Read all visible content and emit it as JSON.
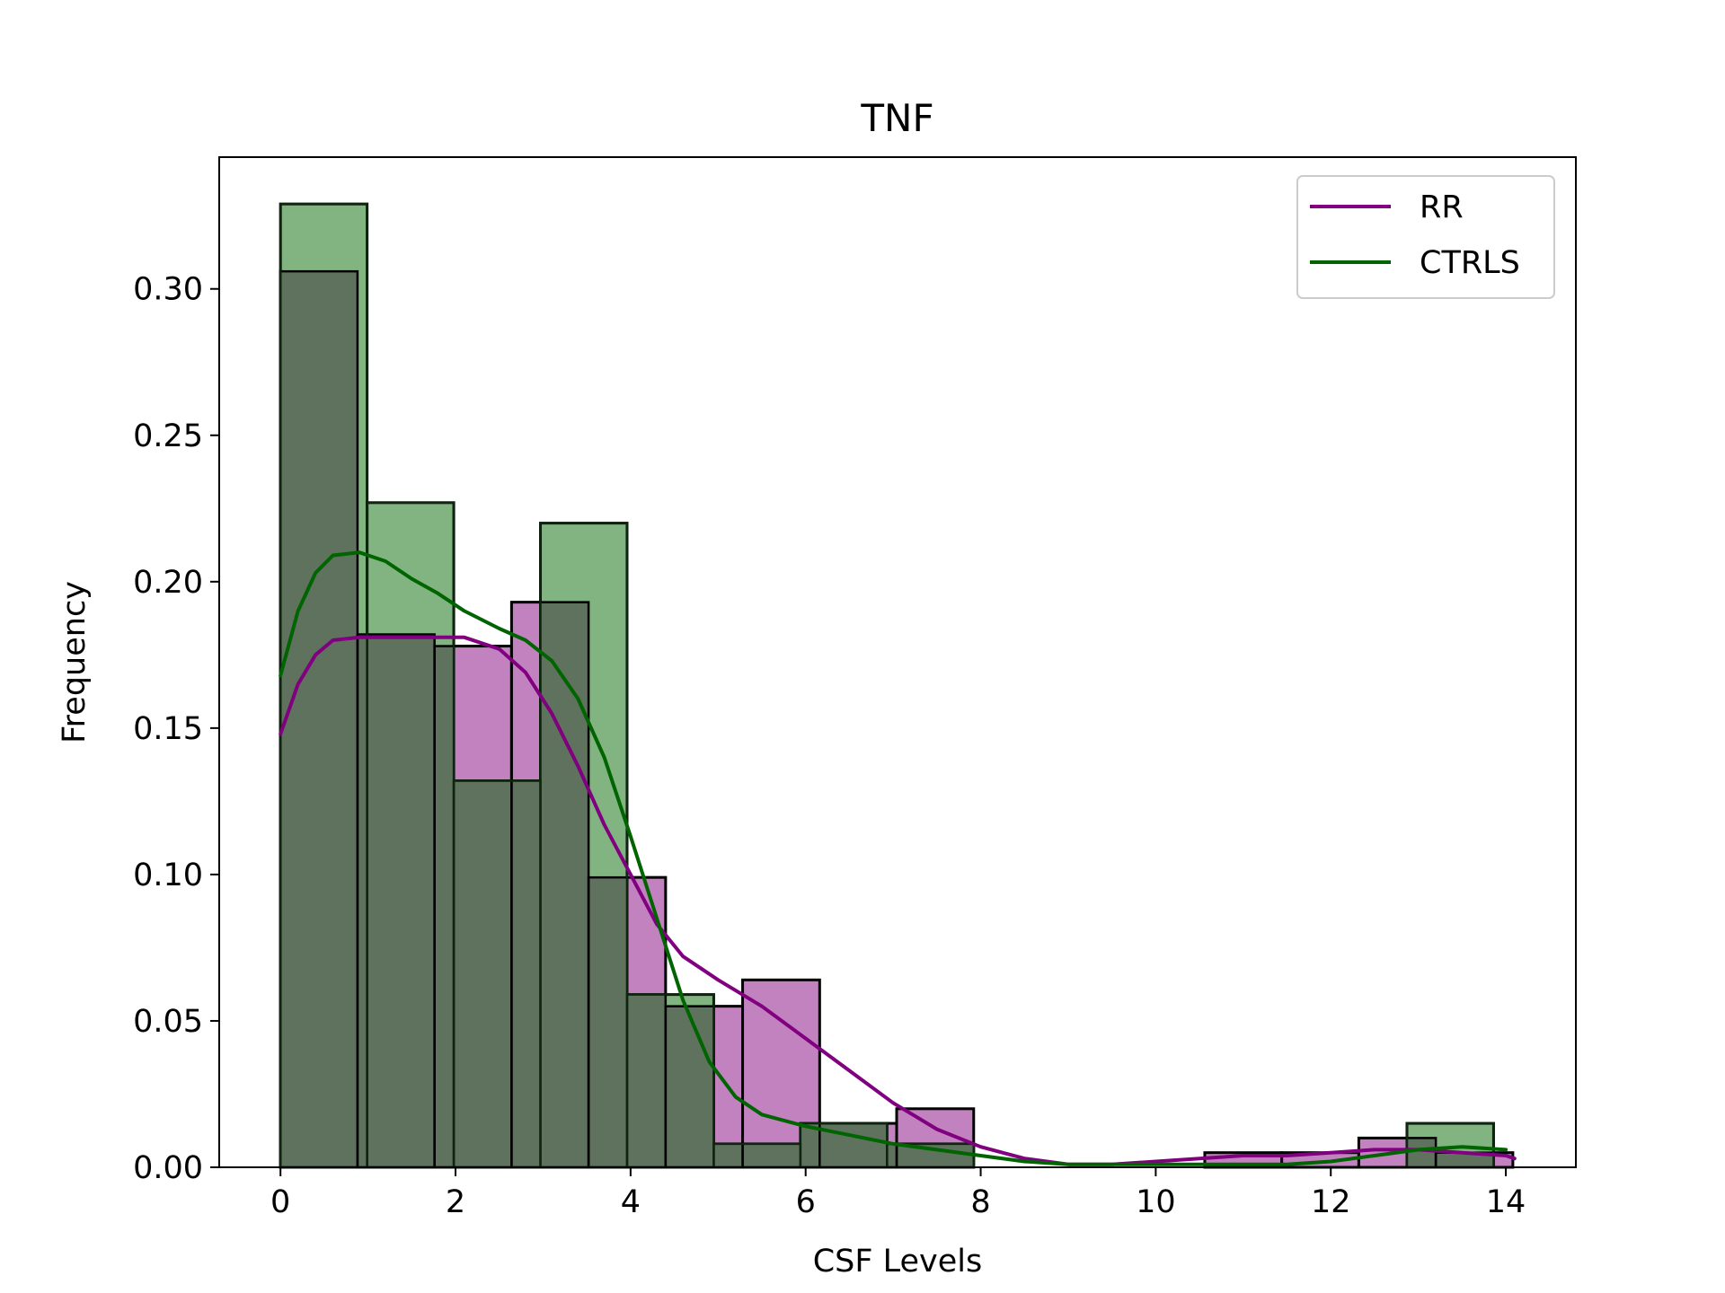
{
  "chart_data": {
    "type": "histogram",
    "title": "TNF",
    "xlabel": "CSF Levels",
    "ylabel": "Frequency",
    "xlim": [
      -0.7,
      14.8
    ],
    "ylim": [
      0,
      0.345
    ],
    "xticks": [
      0,
      2,
      4,
      6,
      8,
      10,
      12,
      14
    ],
    "xtick_labels": [
      "0",
      "2",
      "4",
      "6",
      "8",
      "10",
      "12",
      "14"
    ],
    "yticks": [
      0.0,
      0.05,
      0.1,
      0.15,
      0.2,
      0.25,
      0.3
    ],
    "ytick_labels": [
      "0.00",
      "0.05",
      "0.10",
      "0.15",
      "0.20",
      "0.25",
      "0.30"
    ],
    "legend_position": "top-right",
    "grid": false,
    "series": [
      {
        "name": "RR",
        "color": "#800080",
        "fill": "#c17fbf",
        "bins": [
          {
            "x0": 0.0,
            "x1": 0.88,
            "value": 0.306
          },
          {
            "x0": 0.88,
            "x1": 1.76,
            "value": 0.182
          },
          {
            "x0": 1.76,
            "x1": 2.64,
            "value": 0.178
          },
          {
            "x0": 2.64,
            "x1": 3.52,
            "value": 0.193
          },
          {
            "x0": 3.52,
            "x1": 4.4,
            "value": 0.099
          },
          {
            "x0": 4.4,
            "x1": 5.28,
            "value": 0.055
          },
          {
            "x0": 5.28,
            "x1": 6.16,
            "value": 0.064
          },
          {
            "x0": 6.16,
            "x1": 7.04,
            "value": 0.015
          },
          {
            "x0": 7.04,
            "x1": 7.92,
            "value": 0.02
          },
          {
            "x0": 10.56,
            "x1": 11.44,
            "value": 0.005
          },
          {
            "x0": 11.44,
            "x1": 12.32,
            "value": 0.005
          },
          {
            "x0": 12.32,
            "x1": 13.2,
            "value": 0.01
          },
          {
            "x0": 13.2,
            "x1": 14.08,
            "value": 0.005
          }
        ],
        "kde": [
          [
            0.0,
            0.148
          ],
          [
            0.2,
            0.165
          ],
          [
            0.4,
            0.175
          ],
          [
            0.6,
            0.18
          ],
          [
            0.9,
            0.181
          ],
          [
            1.3,
            0.181
          ],
          [
            1.7,
            0.181
          ],
          [
            2.1,
            0.181
          ],
          [
            2.5,
            0.177
          ],
          [
            2.8,
            0.169
          ],
          [
            3.1,
            0.155
          ],
          [
            3.4,
            0.137
          ],
          [
            3.7,
            0.117
          ],
          [
            4.0,
            0.1
          ],
          [
            4.3,
            0.083
          ],
          [
            4.6,
            0.072
          ],
          [
            5.0,
            0.064
          ],
          [
            5.5,
            0.055
          ],
          [
            6.0,
            0.044
          ],
          [
            6.5,
            0.033
          ],
          [
            7.0,
            0.022
          ],
          [
            7.5,
            0.013
          ],
          [
            8.0,
            0.007
          ],
          [
            8.5,
            0.003
          ],
          [
            9.0,
            0.001
          ],
          [
            9.5,
            0.001
          ],
          [
            10.0,
            0.002
          ],
          [
            10.5,
            0.003
          ],
          [
            11.0,
            0.004
          ],
          [
            11.5,
            0.004
          ],
          [
            12.0,
            0.005
          ],
          [
            12.5,
            0.006
          ],
          [
            13.0,
            0.006
          ],
          [
            13.5,
            0.005
          ],
          [
            14.0,
            0.004
          ],
          [
            14.1,
            0.003
          ]
        ]
      },
      {
        "name": "CTRLS",
        "color": "#006400",
        "fill": "#80b37f",
        "bins": [
          {
            "x0": 0.0,
            "x1": 0.99,
            "value": 0.329
          },
          {
            "x0": 0.99,
            "x1": 1.98,
            "value": 0.227
          },
          {
            "x0": 1.98,
            "x1": 2.97,
            "value": 0.132
          },
          {
            "x0": 2.97,
            "x1": 3.96,
            "value": 0.22
          },
          {
            "x0": 3.96,
            "x1": 4.95,
            "value": 0.059
          },
          {
            "x0": 4.95,
            "x1": 5.94,
            "value": 0.008
          },
          {
            "x0": 5.94,
            "x1": 6.93,
            "value": 0.015
          },
          {
            "x0": 6.93,
            "x1": 7.92,
            "value": 0.008
          },
          {
            "x0": 12.87,
            "x1": 13.86,
            "value": 0.015
          }
        ],
        "kde": [
          [
            0.0,
            0.168
          ],
          [
            0.2,
            0.19
          ],
          [
            0.4,
            0.203
          ],
          [
            0.6,
            0.209
          ],
          [
            0.9,
            0.21
          ],
          [
            1.2,
            0.207
          ],
          [
            1.5,
            0.201
          ],
          [
            1.8,
            0.196
          ],
          [
            2.1,
            0.19
          ],
          [
            2.5,
            0.184
          ],
          [
            2.8,
            0.18
          ],
          [
            3.1,
            0.173
          ],
          [
            3.4,
            0.16
          ],
          [
            3.7,
            0.14
          ],
          [
            4.0,
            0.113
          ],
          [
            4.3,
            0.085
          ],
          [
            4.6,
            0.057
          ],
          [
            4.9,
            0.036
          ],
          [
            5.2,
            0.024
          ],
          [
            5.5,
            0.018
          ],
          [
            6.0,
            0.014
          ],
          [
            6.5,
            0.011
          ],
          [
            7.0,
            0.008
          ],
          [
            7.5,
            0.006
          ],
          [
            8.0,
            0.004
          ],
          [
            8.5,
            0.002
          ],
          [
            9.0,
            0.001
          ],
          [
            9.5,
            0.001
          ],
          [
            10.0,
            0.001
          ],
          [
            10.5,
            0.001
          ],
          [
            11.0,
            0.001
          ],
          [
            11.5,
            0.001
          ],
          [
            12.0,
            0.002
          ],
          [
            12.5,
            0.004
          ],
          [
            13.0,
            0.006
          ],
          [
            13.5,
            0.007
          ],
          [
            14.0,
            0.006
          ]
        ]
      }
    ]
  }
}
